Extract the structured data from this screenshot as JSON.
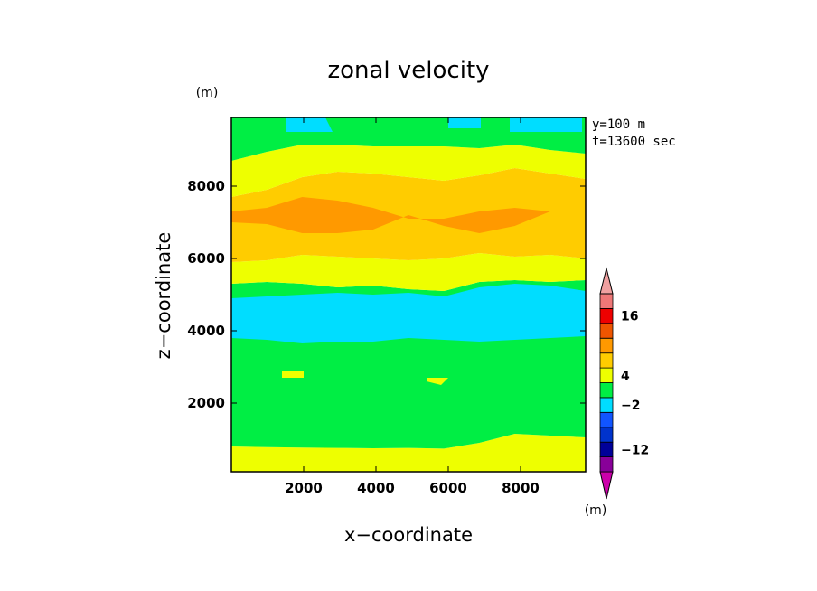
{
  "chart_data": {
    "type": "heatmap",
    "title": "zonal velocity",
    "xlabel": "x−coordinate",
    "ylabel": "z−coordinate",
    "x_unit": "(m)",
    "y_unit": "(m)",
    "annotations": [
      "y=100 m",
      "t=13600 sec"
    ],
    "xlim": [
      0,
      9800
    ],
    "ylim": [
      100,
      9900
    ],
    "x_ticks": [
      2000,
      4000,
      6000,
      8000
    ],
    "x_tick_labels": [
      "2000",
      "4000",
      "6000",
      "8000"
    ],
    "y_ticks": [
      2000,
      4000,
      6000,
      8000
    ],
    "y_tick_labels": [
      "2000",
      "4000",
      "6000",
      "8000"
    ],
    "colorbar": {
      "unit": "(m)",
      "labeled_values": [
        "16",
        "4",
        "−2",
        "−12"
      ],
      "colors": [
        "#cc00aa",
        "#880099",
        "#000099",
        "#0033cc",
        "#1155ff",
        "#00ddff",
        "#00ee44",
        "#eeff00",
        "#ffcc00",
        "#ff9900",
        "#ee5500",
        "#ee0000",
        "#ee7777",
        "#f0a0a0"
      ]
    },
    "contour_bands": [
      {
        "color": "#eeff00",
        "z_bottom": [
          100,
          100,
          100,
          100,
          100,
          100,
          100,
          100,
          100,
          100,
          100
        ],
        "z_top": [
          800,
          780,
          770,
          760,
          750,
          760,
          740,
          900,
          1150,
          1100,
          1050
        ]
      },
      {
        "color": "#00ee44",
        "z_bottom": [
          800,
          780,
          770,
          760,
          750,
          760,
          740,
          900,
          1150,
          1100,
          1050
        ],
        "z_top": [
          5300,
          5350,
          5300,
          5200,
          5250,
          5150,
          5100,
          5350,
          5400,
          5350,
          5400
        ]
      },
      {
        "color": "#00ddff",
        "z_bottom": [
          3800,
          3750,
          3650,
          3700,
          3700,
          3800,
          3750,
          3700,
          3750,
          3800,
          3850
        ],
        "z_top": [
          4900,
          4950,
          5000,
          5050,
          5000,
          5050,
          4950,
          5200,
          5300,
          5250,
          5100
        ]
      },
      {
        "color": "#eeff00",
        "z_bottom": [
          5300,
          5350,
          5300,
          5200,
          5250,
          5150,
          5100,
          5350,
          5400,
          5350,
          5400
        ],
        "z_top": [
          5900,
          5950,
          6100,
          6050,
          6000,
          5950,
          6000,
          6150,
          6050,
          6100,
          6000
        ]
      },
      {
        "color": "#ffcc00",
        "z_bottom": [
          5900,
          5950,
          6100,
          6050,
          6000,
          5950,
          6000,
          6150,
          6050,
          6100,
          6000
        ],
        "z_top": [
          7700,
          7900,
          8250,
          8400,
          8350,
          8250,
          8150,
          8300,
          8500,
          8350,
          8200
        ]
      },
      {
        "color": "#ff9900",
        "z_bottom": [
          7000,
          6950,
          6700,
          6700,
          6800,
          7200,
          6900,
          6700,
          6900,
          7300,
          7300
        ],
        "z_top": [
          7300,
          7400,
          7700,
          7600,
          7400,
          7100,
          7100,
          7300,
          7400,
          7300,
          7300
        ]
      },
      {
        "color": "#eeff00",
        "z_bottom": [
          7700,
          7900,
          8250,
          8400,
          8350,
          8250,
          8150,
          8300,
          8500,
          8350,
          8200
        ],
        "z_top": [
          8700,
          8950,
          9150,
          9150,
          9100,
          9100,
          9100,
          9050,
          9150,
          9000,
          8900
        ]
      },
      {
        "color": "#00ee44",
        "z_bottom": [
          8700,
          8950,
          9150,
          9150,
          9100,
          9100,
          9100,
          9050,
          9150,
          9000,
          8900
        ],
        "z_top": [
          9900,
          9900,
          9900,
          9900,
          9900,
          9900,
          9900,
          9900,
          9900,
          9900,
          9900
        ]
      }
    ],
    "band_x": [
      0,
      980,
      1960,
      2940,
      3920,
      4900,
      5880,
      6860,
      7840,
      8820,
      9800
    ],
    "patches": [
      {
        "color": "#00ddff",
        "x": [
          1500,
          2600,
          2800,
          1500
        ],
        "z": [
          9900,
          9900,
          9500,
          9500
        ]
      },
      {
        "color": "#00ddff",
        "x": [
          6000,
          6900,
          6900,
          6000
        ],
        "z": [
          9900,
          9900,
          9600,
          9600
        ]
      },
      {
        "color": "#00ddff",
        "x": [
          7700,
          9700,
          9700,
          7700
        ],
        "z": [
          9900,
          9900,
          9500,
          9500
        ]
      },
      {
        "color": "#eeff00",
        "x": [
          1400,
          2000,
          2000,
          1400
        ],
        "z": [
          2900,
          2900,
          2700,
          2700
        ]
      },
      {
        "color": "#eeff00",
        "x": [
          5400,
          6000,
          5800,
          5400
        ],
        "z": [
          2700,
          2700,
          2500,
          2600
        ]
      }
    ]
  }
}
